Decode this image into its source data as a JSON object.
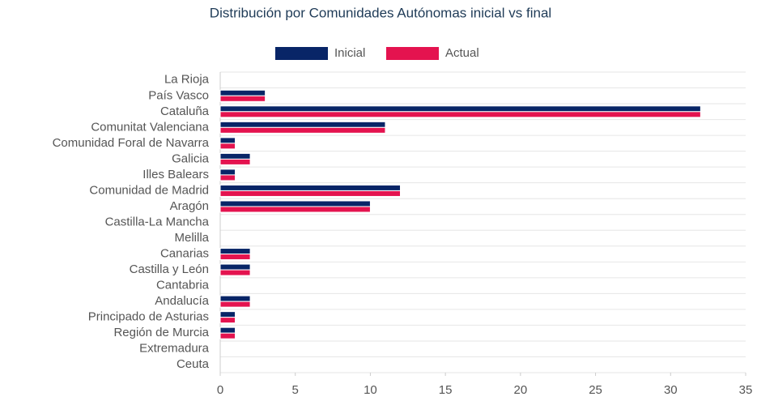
{
  "chart_data": {
    "type": "bar",
    "orientation": "horizontal",
    "title": "Distribución por Comunidades Autónomas inicial vs final",
    "categories": [
      "La Rioja",
      "País Vasco",
      "Cataluña",
      "Comunitat Valenciana",
      "Comunidad Foral de Navarra",
      "Galicia",
      "Illes Balears",
      "Comunidad de Madrid",
      "Aragón",
      "Castilla-La Mancha",
      "Melilla",
      "Canarias",
      "Castilla y León",
      "Cantabria",
      "Andalucía",
      "Principado de Asturias",
      "Región de Murcia",
      "Extremadura",
      "Ceuta"
    ],
    "series": [
      {
        "name": "Inicial",
        "color": "#082567",
        "values": [
          0,
          3,
          32,
          11,
          1,
          2,
          1,
          12,
          10,
          0,
          0,
          2,
          2,
          0,
          2,
          1,
          1,
          0,
          0
        ]
      },
      {
        "name": "Actual",
        "color": "#e4134f",
        "values": [
          0,
          3,
          32,
          11,
          1,
          2,
          1,
          12,
          10,
          0,
          0,
          2,
          2,
          0,
          2,
          1,
          1,
          0,
          0
        ]
      }
    ],
    "xlim": [
      0,
      35
    ],
    "xticks": [
      0,
      5,
      10,
      15,
      20,
      25,
      30,
      35
    ],
    "grid": true,
    "legend": "top"
  }
}
